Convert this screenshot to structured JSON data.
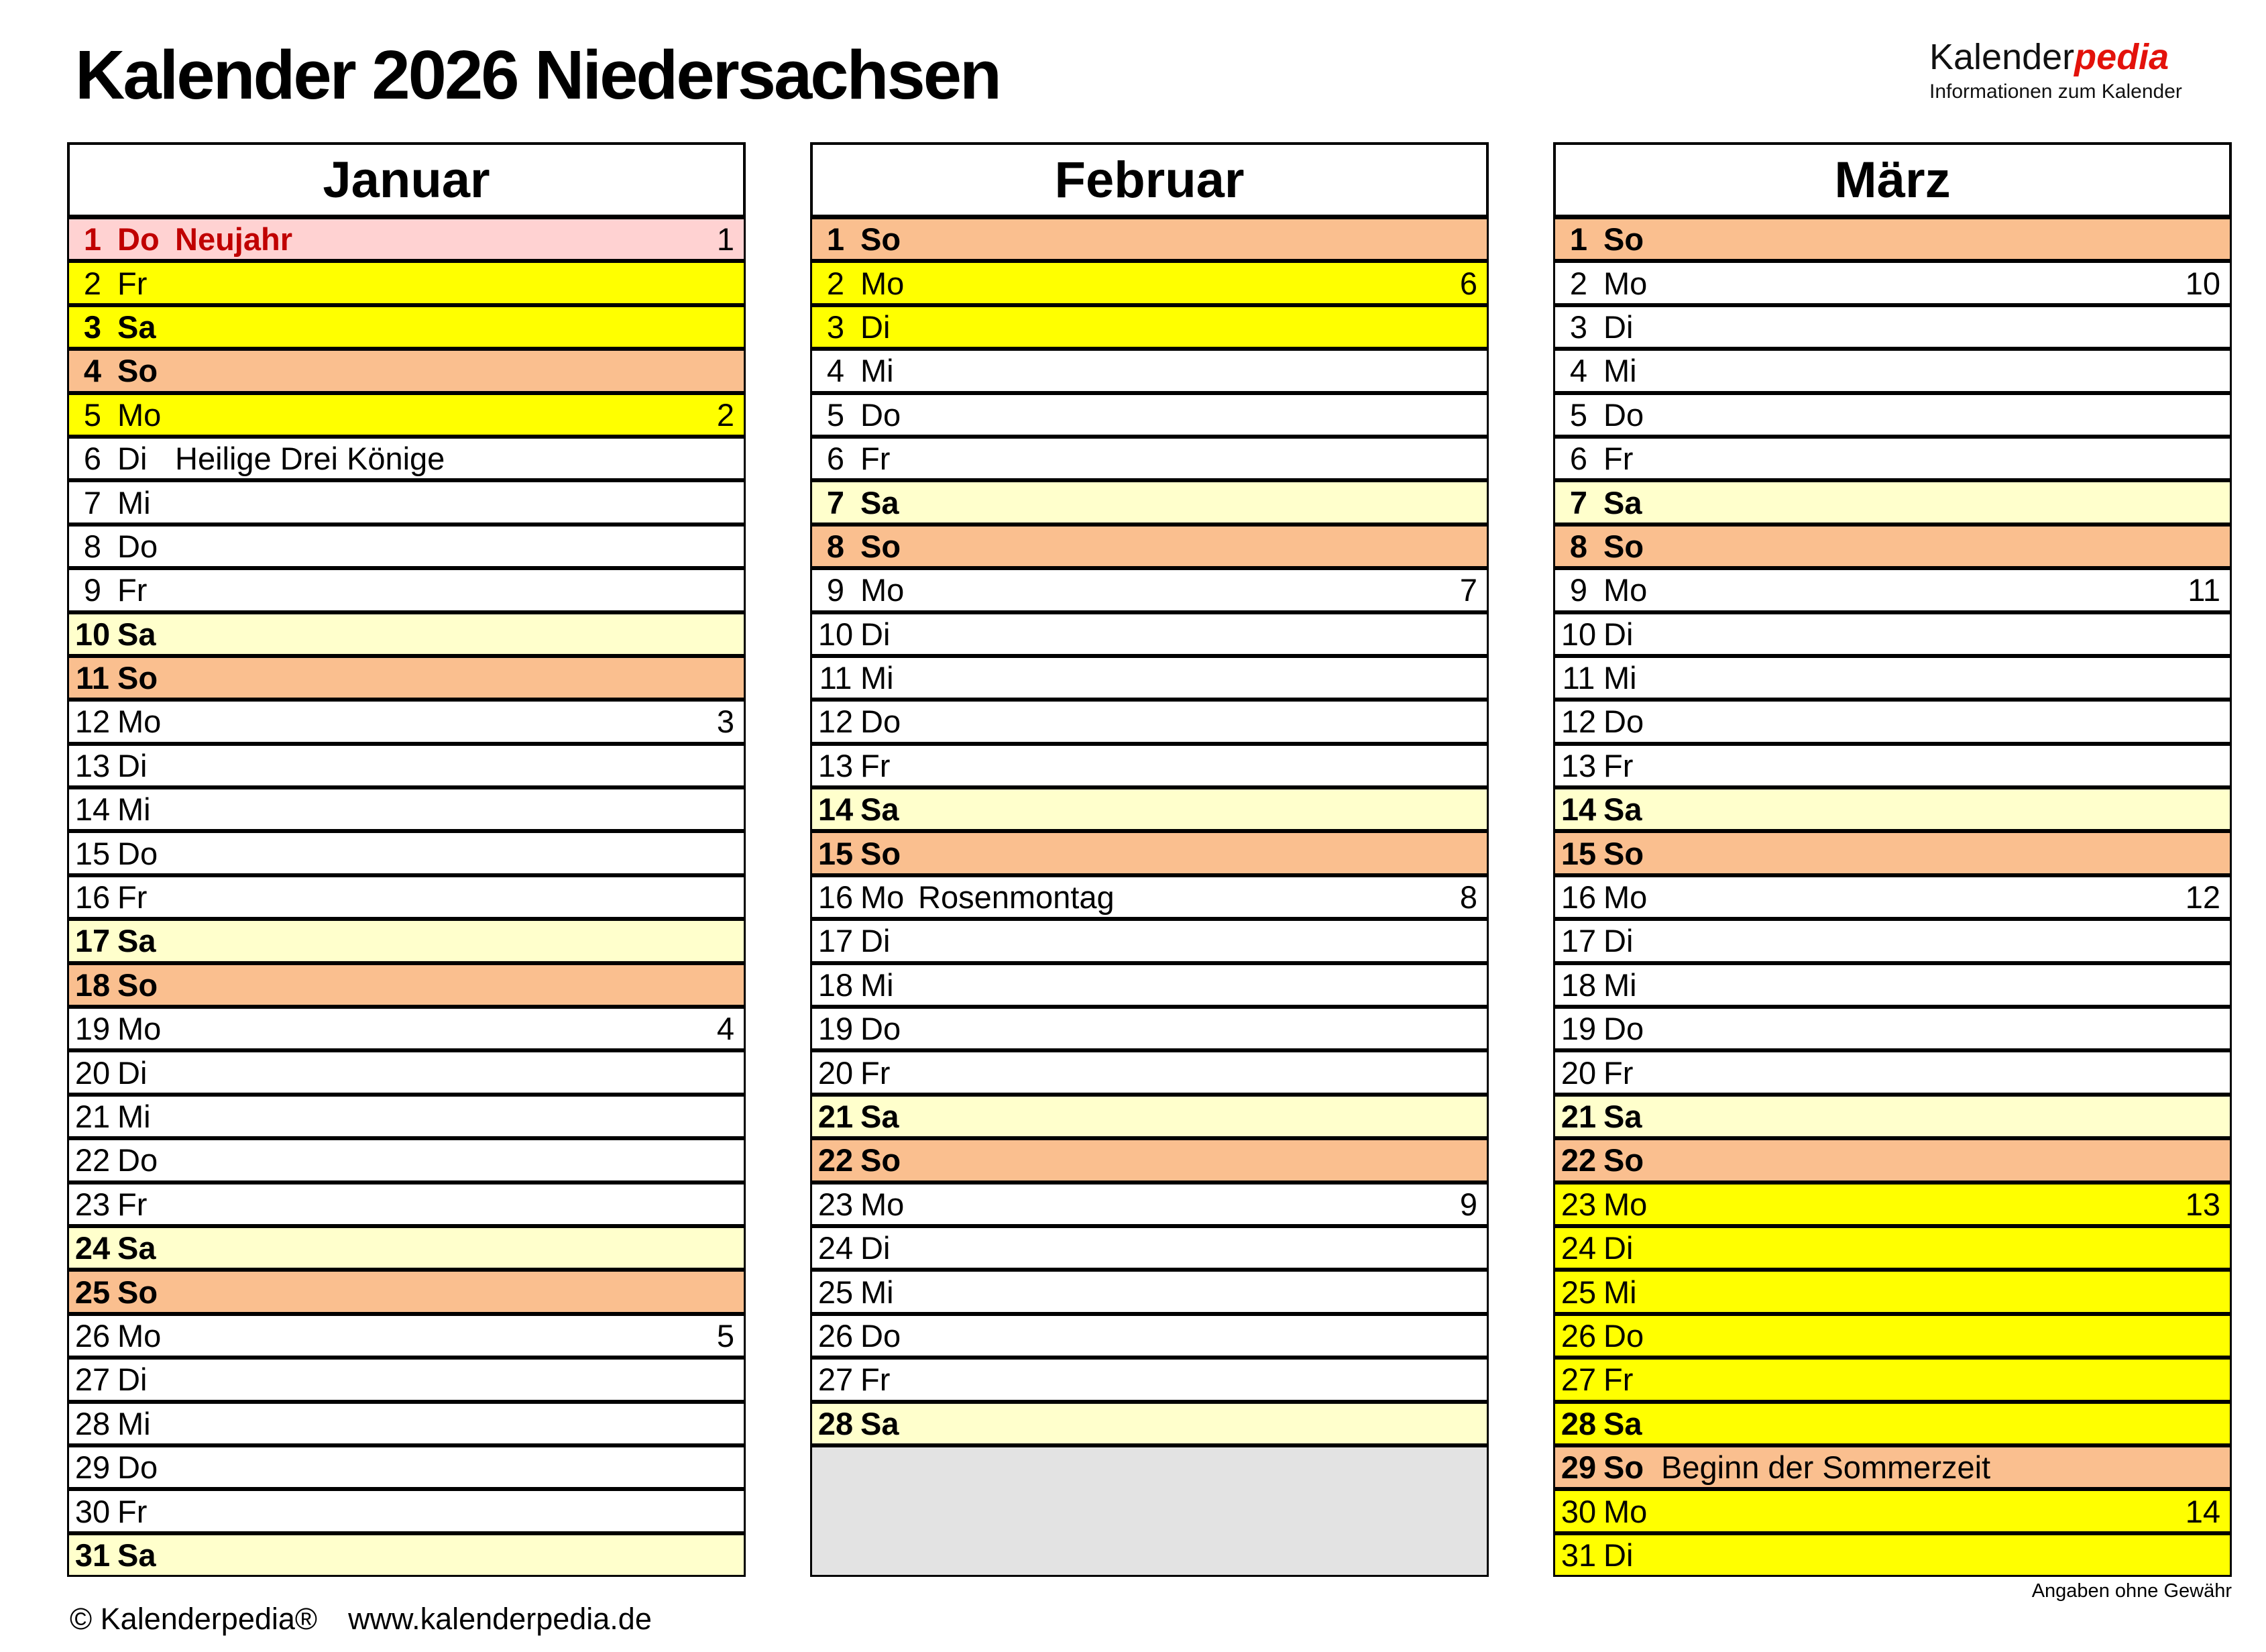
{
  "title": "Kalender 2026 Niedersachsen",
  "logo": {
    "brand_black": "Kalender",
    "brand_red": "pedia",
    "subtitle": "Informationen zum Kalender"
  },
  "footer": {
    "copyright": "© Kalenderpedia®",
    "website": "www.kalenderpedia.de",
    "disclaimer": "Angaben ohne Gewähr"
  },
  "colors": {
    "white": "#FFFFFF",
    "yellow": "#FFFF00",
    "cream": "#FFFFCC",
    "orange": "#FABF8F",
    "pink": "#FFD2D2",
    "gray": "#E3E3E3",
    "holiday_text": "#C00000",
    "logo_red": "#E3120B",
    "border": "#000000"
  },
  "months": [
    {
      "name": "Januar",
      "days": [
        {
          "d": 1,
          "wd": "Do",
          "note": "Neujahr",
          "week": 1,
          "bg": "pink"
        },
        {
          "d": 2,
          "wd": "Fr",
          "bg": "yellow"
        },
        {
          "d": 3,
          "wd": "Sa",
          "bg": "yellow"
        },
        {
          "d": 4,
          "wd": "So",
          "bg": "orange"
        },
        {
          "d": 5,
          "wd": "Mo",
          "week": 2,
          "bg": "yellow"
        },
        {
          "d": 6,
          "wd": "Di",
          "note": "Heilige Drei Könige"
        },
        {
          "d": 7,
          "wd": "Mi"
        },
        {
          "d": 8,
          "wd": "Do"
        },
        {
          "d": 9,
          "wd": "Fr"
        },
        {
          "d": 10,
          "wd": "Sa",
          "bg": "cream"
        },
        {
          "d": 11,
          "wd": "So",
          "bg": "orange"
        },
        {
          "d": 12,
          "wd": "Mo",
          "week": 3
        },
        {
          "d": 13,
          "wd": "Di"
        },
        {
          "d": 14,
          "wd": "Mi"
        },
        {
          "d": 15,
          "wd": "Do"
        },
        {
          "d": 16,
          "wd": "Fr"
        },
        {
          "d": 17,
          "wd": "Sa",
          "bg": "cream"
        },
        {
          "d": 18,
          "wd": "So",
          "bg": "orange"
        },
        {
          "d": 19,
          "wd": "Mo",
          "week": 4
        },
        {
          "d": 20,
          "wd": "Di"
        },
        {
          "d": 21,
          "wd": "Mi"
        },
        {
          "d": 22,
          "wd": "Do"
        },
        {
          "d": 23,
          "wd": "Fr"
        },
        {
          "d": 24,
          "wd": "Sa",
          "bg": "cream"
        },
        {
          "d": 25,
          "wd": "So",
          "bg": "orange"
        },
        {
          "d": 26,
          "wd": "Mo",
          "week": 5
        },
        {
          "d": 27,
          "wd": "Di"
        },
        {
          "d": 28,
          "wd": "Mi"
        },
        {
          "d": 29,
          "wd": "Do"
        },
        {
          "d": 30,
          "wd": "Fr"
        },
        {
          "d": 31,
          "wd": "Sa",
          "bg": "cream"
        }
      ],
      "filler_rows": 0
    },
    {
      "name": "Februar",
      "days": [
        {
          "d": 1,
          "wd": "So",
          "bg": "orange"
        },
        {
          "d": 2,
          "wd": "Mo",
          "week": 6,
          "bg": "yellow"
        },
        {
          "d": 3,
          "wd": "Di",
          "bg": "yellow"
        },
        {
          "d": 4,
          "wd": "Mi"
        },
        {
          "d": 5,
          "wd": "Do"
        },
        {
          "d": 6,
          "wd": "Fr"
        },
        {
          "d": 7,
          "wd": "Sa",
          "bg": "cream"
        },
        {
          "d": 8,
          "wd": "So",
          "bg": "orange"
        },
        {
          "d": 9,
          "wd": "Mo",
          "week": 7
        },
        {
          "d": 10,
          "wd": "Di"
        },
        {
          "d": 11,
          "wd": "Mi"
        },
        {
          "d": 12,
          "wd": "Do"
        },
        {
          "d": 13,
          "wd": "Fr"
        },
        {
          "d": 14,
          "wd": "Sa",
          "bg": "cream"
        },
        {
          "d": 15,
          "wd": "So",
          "bg": "orange"
        },
        {
          "d": 16,
          "wd": "Mo",
          "note": "Rosenmontag",
          "week": 8
        },
        {
          "d": 17,
          "wd": "Di"
        },
        {
          "d": 18,
          "wd": "Mi"
        },
        {
          "d": 19,
          "wd": "Do"
        },
        {
          "d": 20,
          "wd": "Fr"
        },
        {
          "d": 21,
          "wd": "Sa",
          "bg": "cream"
        },
        {
          "d": 22,
          "wd": "So",
          "bg": "orange"
        },
        {
          "d": 23,
          "wd": "Mo",
          "week": 9
        },
        {
          "d": 24,
          "wd": "Di"
        },
        {
          "d": 25,
          "wd": "Mi"
        },
        {
          "d": 26,
          "wd": "Do"
        },
        {
          "d": 27,
          "wd": "Fr"
        },
        {
          "d": 28,
          "wd": "Sa",
          "bg": "cream"
        }
      ],
      "filler_rows": 3
    },
    {
      "name": "März",
      "days": [
        {
          "d": 1,
          "wd": "So",
          "bg": "orange"
        },
        {
          "d": 2,
          "wd": "Mo",
          "week": 10
        },
        {
          "d": 3,
          "wd": "Di"
        },
        {
          "d": 4,
          "wd": "Mi"
        },
        {
          "d": 5,
          "wd": "Do"
        },
        {
          "d": 6,
          "wd": "Fr"
        },
        {
          "d": 7,
          "wd": "Sa",
          "bg": "cream"
        },
        {
          "d": 8,
          "wd": "So",
          "bg": "orange"
        },
        {
          "d": 9,
          "wd": "Mo",
          "week": 11
        },
        {
          "d": 10,
          "wd": "Di"
        },
        {
          "d": 11,
          "wd": "Mi"
        },
        {
          "d": 12,
          "wd": "Do"
        },
        {
          "d": 13,
          "wd": "Fr"
        },
        {
          "d": 14,
          "wd": "Sa",
          "bg": "cream"
        },
        {
          "d": 15,
          "wd": "So",
          "bg": "orange"
        },
        {
          "d": 16,
          "wd": "Mo",
          "week": 12
        },
        {
          "d": 17,
          "wd": "Di"
        },
        {
          "d": 18,
          "wd": "Mi"
        },
        {
          "d": 19,
          "wd": "Do"
        },
        {
          "d": 20,
          "wd": "Fr"
        },
        {
          "d": 21,
          "wd": "Sa",
          "bg": "cream"
        },
        {
          "d": 22,
          "wd": "So",
          "bg": "orange"
        },
        {
          "d": 23,
          "wd": "Mo",
          "week": 13,
          "bg": "yellow"
        },
        {
          "d": 24,
          "wd": "Di",
          "bg": "yellow"
        },
        {
          "d": 25,
          "wd": "Mi",
          "bg": "yellow"
        },
        {
          "d": 26,
          "wd": "Do",
          "bg": "yellow"
        },
        {
          "d": 27,
          "wd": "Fr",
          "bg": "yellow"
        },
        {
          "d": 28,
          "wd": "Sa",
          "bg": "yellow"
        },
        {
          "d": 29,
          "wd": "So",
          "note": "Beginn der Sommerzeit",
          "bg": "orange"
        },
        {
          "d": 30,
          "wd": "Mo",
          "week": 14,
          "bg": "yellow"
        },
        {
          "d": 31,
          "wd": "Di",
          "bg": "yellow"
        }
      ],
      "filler_rows": 0
    }
  ]
}
